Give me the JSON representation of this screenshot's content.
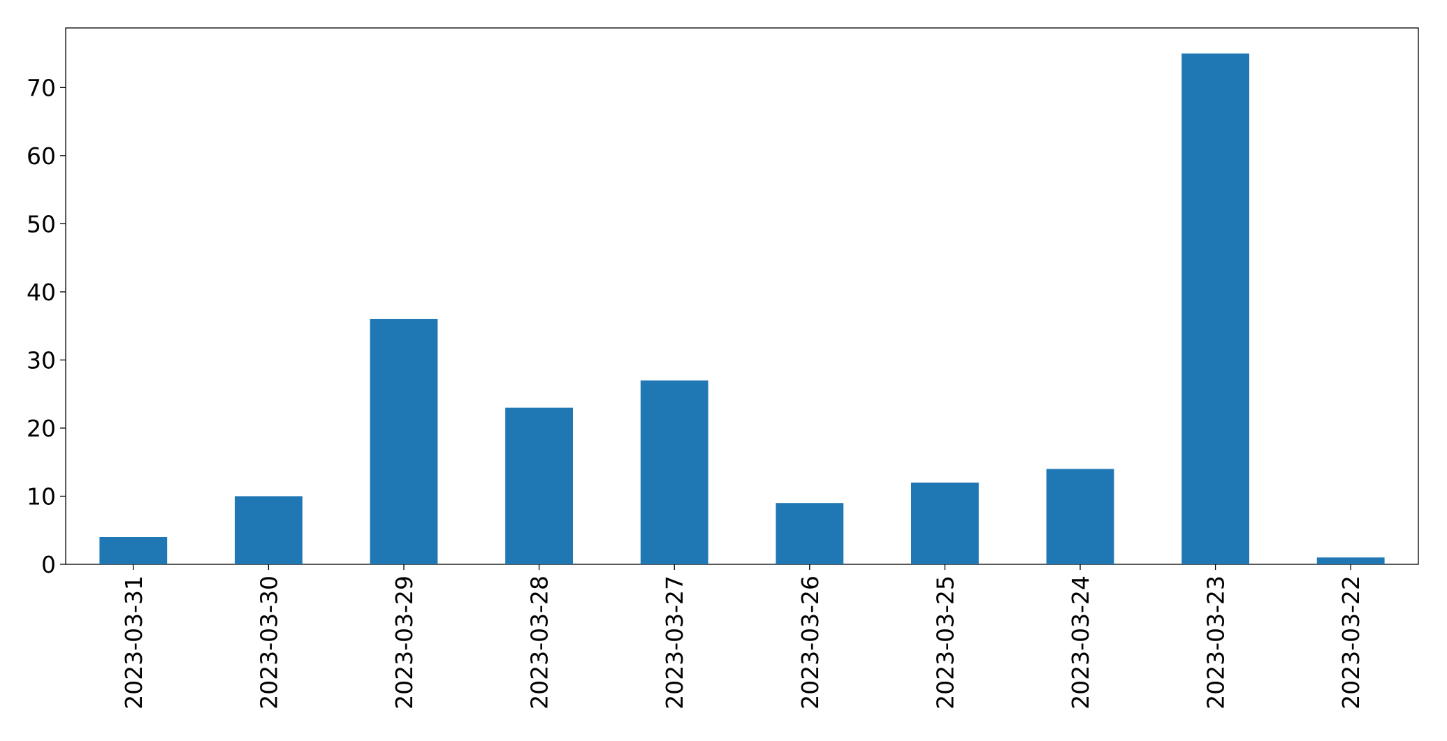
{
  "chart_data": {
    "type": "bar",
    "categories": [
      "2023-03-31",
      "2023-03-30",
      "2023-03-29",
      "2023-03-28",
      "2023-03-27",
      "2023-03-26",
      "2023-03-25",
      "2023-03-24",
      "2023-03-23",
      "2023-03-22"
    ],
    "values": [
      4,
      10,
      36,
      23,
      27,
      9,
      12,
      14,
      75,
      1
    ],
    "color": "#1f77b4",
    "ylim": [
      0,
      78.75
    ],
    "yticks": [
      0,
      10,
      20,
      30,
      40,
      50,
      60,
      70
    ],
    "grid": false
  }
}
